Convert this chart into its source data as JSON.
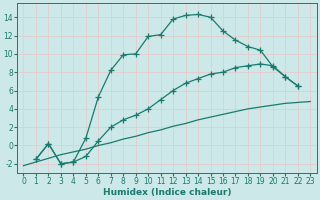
{
  "bg_color": "#cce8e8",
  "grid_color": "#b8d8d8",
  "line_color": "#1a7a6e",
  "line_width": 0.9,
  "marker": "+",
  "marker_size": 4,
  "marker_ew": 0.9,
  "xlim": [
    -0.5,
    23.5
  ],
  "ylim": [
    -3.0,
    15.5
  ],
  "xlabel": "Humidex (Indice chaleur)",
  "xlabel_fontsize": 6.5,
  "yticks": [
    -2,
    0,
    2,
    4,
    6,
    8,
    10,
    12,
    14
  ],
  "xticks": [
    0,
    1,
    2,
    3,
    4,
    5,
    6,
    7,
    8,
    9,
    10,
    11,
    12,
    13,
    14,
    15,
    16,
    17,
    18,
    19,
    20,
    21,
    22,
    23
  ],
  "tick_fontsize": 5.5,
  "curve1_x": [
    1,
    2,
    3,
    4,
    5,
    6,
    7,
    8,
    9,
    10,
    11,
    12,
    13,
    14,
    15,
    16,
    17,
    18,
    19,
    20,
    21,
    22
  ],
  "curve1_y": [
    -1.5,
    0.2,
    -2.0,
    -1.8,
    0.8,
    5.3,
    8.2,
    9.9,
    10.0,
    11.9,
    12.1,
    13.8,
    14.2,
    14.3,
    14.0,
    12.5,
    11.5,
    10.8,
    10.4,
    8.6,
    7.5,
    6.5
  ],
  "curve2_x": [
    1,
    2,
    3,
    4,
    5,
    6,
    7,
    8,
    9,
    10,
    11,
    12,
    13,
    14,
    15,
    16,
    17,
    18,
    19,
    20,
    21,
    22
  ],
  "curve2_y": [
    -1.5,
    0.2,
    -2.0,
    -1.8,
    -1.2,
    0.5,
    2.0,
    2.8,
    3.3,
    4.0,
    5.0,
    6.0,
    6.8,
    7.3,
    7.8,
    8.0,
    8.5,
    8.7,
    8.9,
    8.7,
    7.5,
    6.5
  ],
  "curve3_x": [
    0,
    1,
    2,
    3,
    4,
    5,
    6,
    7,
    8,
    9,
    10,
    11,
    12,
    13,
    14,
    15,
    16,
    17,
    18,
    19,
    20,
    21,
    22,
    23
  ],
  "curve3_y": [
    -2.2,
    -1.8,
    -1.4,
    -1.0,
    -0.7,
    -0.4,
    0.0,
    0.3,
    0.7,
    1.0,
    1.4,
    1.7,
    2.1,
    2.4,
    2.8,
    3.1,
    3.4,
    3.7,
    4.0,
    4.2,
    4.4,
    4.6,
    4.7,
    4.8
  ]
}
